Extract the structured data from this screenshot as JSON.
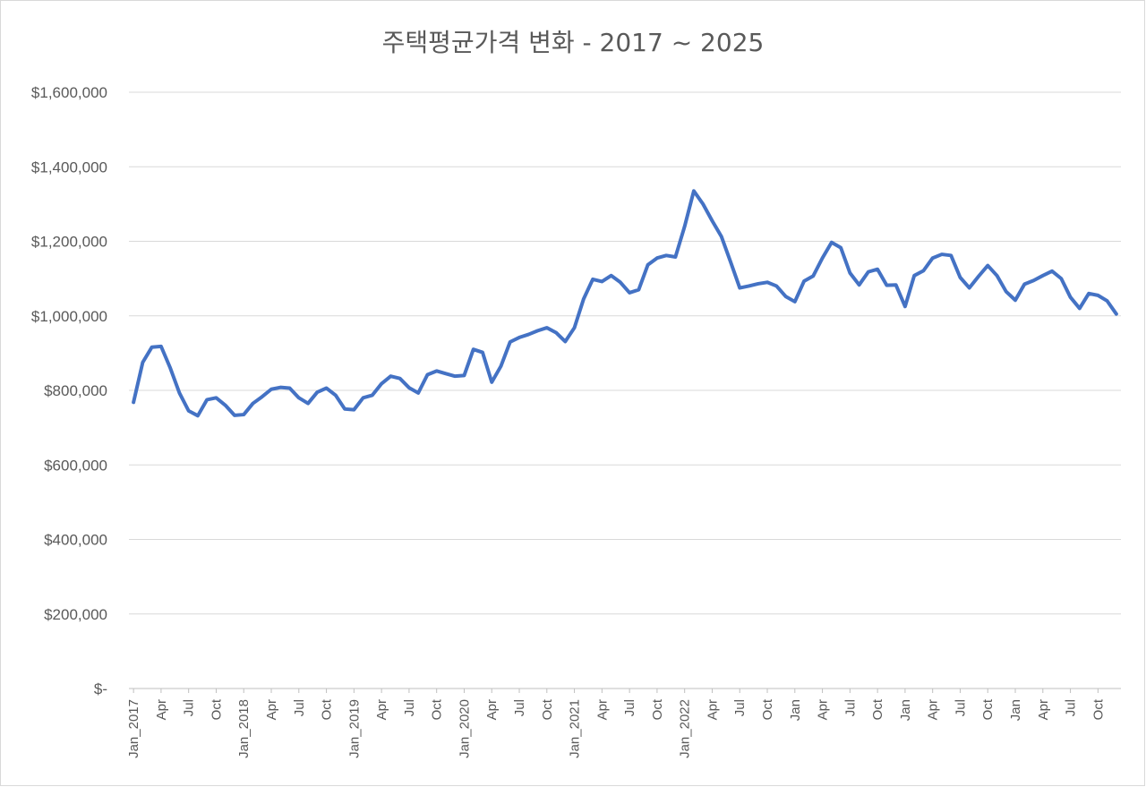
{
  "chart_data": {
    "type": "line",
    "title": "주택평균가격 변화 - 2017 ~ 2025",
    "xlabel": "",
    "ylabel": "",
    "ylim": [
      0,
      1600000
    ],
    "yticks": [
      0,
      200000,
      400000,
      600000,
      800000,
      1000000,
      1200000,
      1400000,
      1600000
    ],
    "ytick_labels": [
      "$-",
      "$200,000",
      "$400,000",
      "$600,000",
      "$800,000",
      "$1,000,000",
      "$1,200,000",
      "$1,400,000",
      "$1,600,000"
    ],
    "grid": true,
    "legend": "none",
    "color": "#4472c4",
    "tick_labels": [
      {
        "index": 0,
        "label": "Jan_2017"
      },
      {
        "index": 3,
        "label": "Apr"
      },
      {
        "index": 6,
        "label": "Jul"
      },
      {
        "index": 9,
        "label": "Oct"
      },
      {
        "index": 12,
        "label": "Jan_2018"
      },
      {
        "index": 15,
        "label": "Apr"
      },
      {
        "index": 18,
        "label": "Jul"
      },
      {
        "index": 21,
        "label": "Oct"
      },
      {
        "index": 24,
        "label": "Jan_2019"
      },
      {
        "index": 27,
        "label": "Apr"
      },
      {
        "index": 30,
        "label": "Jul"
      },
      {
        "index": 33,
        "label": "Oct"
      },
      {
        "index": 36,
        "label": "Jan_2020"
      },
      {
        "index": 39,
        "label": "Apr"
      },
      {
        "index": 42,
        "label": "Jul"
      },
      {
        "index": 45,
        "label": "Oct"
      },
      {
        "index": 48,
        "label": "Jan_2021"
      },
      {
        "index": 51,
        "label": "Apr"
      },
      {
        "index": 54,
        "label": "Jul"
      },
      {
        "index": 57,
        "label": "Oct"
      },
      {
        "index": 60,
        "label": "Jan_2022"
      },
      {
        "index": 63,
        "label": "Apr"
      },
      {
        "index": 66,
        "label": "Jul"
      },
      {
        "index": 69,
        "label": "Oct"
      },
      {
        "index": 72,
        "label": "Jan"
      },
      {
        "index": 75,
        "label": "Apr"
      },
      {
        "index": 78,
        "label": "Jul"
      },
      {
        "index": 81,
        "label": "Oct"
      },
      {
        "index": 84,
        "label": "Jan"
      },
      {
        "index": 87,
        "label": "Apr"
      },
      {
        "index": 90,
        "label": "Jul"
      },
      {
        "index": 93,
        "label": "Oct"
      },
      {
        "index": 96,
        "label": "Jan"
      },
      {
        "index": 99,
        "label": "Apr"
      },
      {
        "index": 102,
        "label": "Jul"
      },
      {
        "index": 105,
        "label": "Oct"
      }
    ],
    "series": [
      {
        "values": [
          768000,
          875000,
          916000,
          918000,
          860000,
          793000,
          745000,
          732000,
          775000,
          780000,
          760000,
          733000,
          735000,
          765000,
          783000,
          803000,
          808000,
          806000,
          780000,
          765000,
          795000,
          806000,
          787000,
          750000,
          748000,
          780000,
          787000,
          818000,
          838000,
          832000,
          807000,
          793000,
          842000,
          852000,
          845000,
          838000,
          840000,
          910000,
          902000,
          822000,
          865000,
          930000,
          942000,
          950000,
          960000,
          968000,
          955000,
          931000,
          968000,
          1045000,
          1098000,
          1092000,
          1108000,
          1090000,
          1062000,
          1070000,
          1137000,
          1155000,
          1162000,
          1158000,
          1240000,
          1335000,
          1300000,
          1255000,
          1213000,
          1145000,
          1075000,
          1080000,
          1086000,
          1090000,
          1080000,
          1052000,
          1038000,
          1093000,
          1107000,
          1155000,
          1197000,
          1183000,
          1115000,
          1083000,
          1118000,
          1125000,
          1082000,
          1083000,
          1025000,
          1108000,
          1121000,
          1155000,
          1165000,
          1162000,
          1103000,
          1075000,
          1106000,
          1135000,
          1108000,
          1065000,
          1042000,
          1085000,
          1095000,
          1108000,
          1120000,
          1100000,
          1050000,
          1020000,
          1060000,
          1055000,
          1040000,
          1005000
        ]
      }
    ]
  }
}
